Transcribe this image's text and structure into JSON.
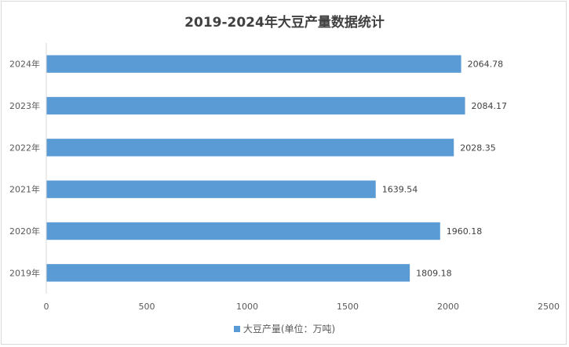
{
  "chart_data": {
    "type": "bar",
    "orientation": "horizontal",
    "title": "2019-2024年大豆产量数据统计",
    "categories": [
      "2019年",
      "2020年",
      "2021年",
      "2022年",
      "2023年",
      "2024年"
    ],
    "series": [
      {
        "name": "大豆产量(单位：万吨)",
        "values": [
          1809.18,
          1960.18,
          1639.54,
          2028.35,
          2084.17,
          2064.78
        ],
        "color": "#5b9bd5"
      }
    ],
    "data_labels": [
      "1809.18",
      "1960.18",
      "1639.54",
      "2028.35",
      "2084.17",
      "2064.78"
    ],
    "xlim": [
      0,
      2500
    ],
    "x_ticks": [
      0,
      500,
      1000,
      1500,
      2000,
      2500
    ],
    "grid": false,
    "legend_position": "bottom"
  }
}
